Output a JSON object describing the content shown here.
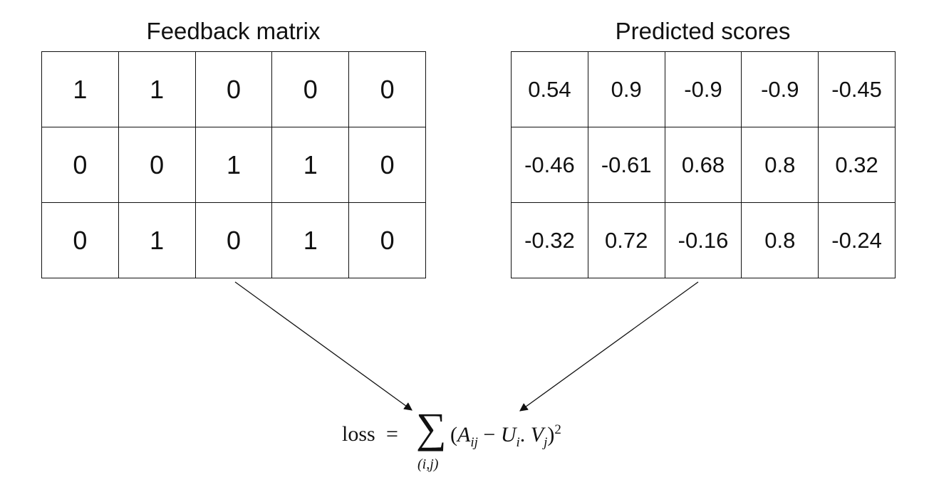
{
  "titles": {
    "left": "Feedback matrix",
    "right": "Predicted scores"
  },
  "feedback_matrix": [
    [
      "1",
      "1",
      "0",
      "0",
      "0"
    ],
    [
      "0",
      "0",
      "1",
      "1",
      "0"
    ],
    [
      "0",
      "1",
      "0",
      "1",
      "0"
    ]
  ],
  "predicted_scores": [
    [
      "0.54",
      "0.9",
      "-0.9",
      "-0.9",
      "-0.45"
    ],
    [
      "-0.46",
      "-0.61",
      "0.68",
      "0.8",
      "0.32"
    ],
    [
      "-0.32",
      "0.72",
      "-0.16",
      "0.8",
      "-0.24"
    ]
  ],
  "formula": {
    "lhs": "loss",
    "equals": "=",
    "sum_symbol": "∑",
    "sum_index": "(i,j)",
    "term_open": "(",
    "A": "A",
    "A_sub": "ij",
    "minus": " − ",
    "U": "U",
    "U_sub": "i",
    "dot": ". ",
    "V": "V",
    "V_sub": "j",
    "term_close": ")",
    "exponent": "2"
  }
}
